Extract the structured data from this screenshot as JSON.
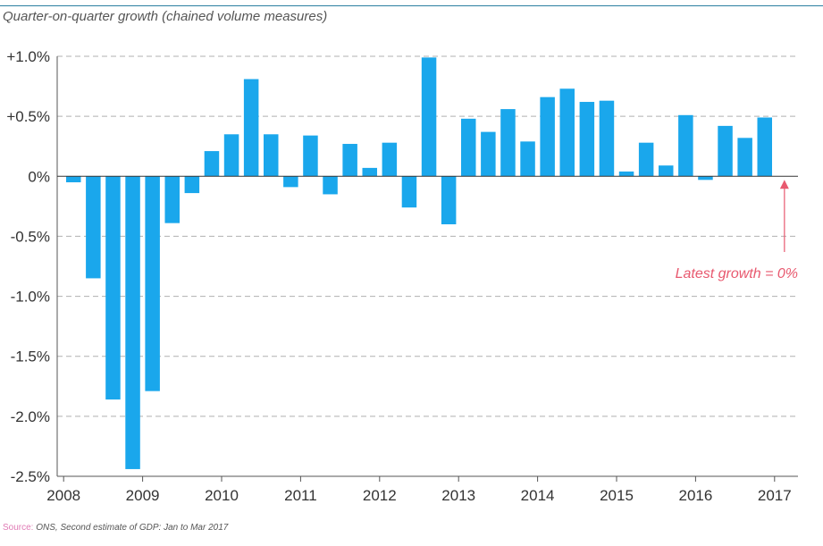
{
  "chart_data": {
    "type": "bar",
    "subtitle": "Quarter-on-quarter growth (chained volume measures)",
    "x_tick_labels": [
      "2008",
      "2009",
      "2010",
      "2011",
      "2012",
      "2013",
      "2014",
      "2015",
      "2016",
      "2017"
    ],
    "y_tick_labels": [
      "+1.0%",
      "+0.5%",
      "0%",
      "-0.5%",
      "-1.0%",
      "-1.5%",
      "-2.0%",
      "-2.5%"
    ],
    "y_ticks": [
      1.0,
      0.5,
      0,
      -0.5,
      -1.0,
      -1.5,
      -2.0,
      -2.5
    ],
    "ylim": [
      -2.5,
      1.0
    ],
    "ylabel": "",
    "xlabel": "",
    "grid": true,
    "grid_style": "dashed",
    "bar_color": "#1aa7ec",
    "series": [
      {
        "values": [
          -0.05,
          -0.85,
          -1.86,
          -2.44,
          -1.79,
          -0.39,
          -0.14,
          0.21,
          0.35,
          0.81,
          0.35,
          -0.09,
          0.34,
          -0.15,
          0.27,
          0.07,
          0.28,
          -0.26,
          0.99,
          -0.4,
          0.48,
          0.37,
          0.56,
          0.29,
          0.66,
          0.73,
          0.62,
          0.63,
          0.04,
          0.28,
          0.09,
          0.51,
          -0.03,
          0.42,
          0.32,
          0.49,
          0.0
        ]
      }
    ],
    "annotation": {
      "text": "Latest growth = 0%",
      "color": "#e8596f"
    }
  },
  "source": {
    "label": "Source:",
    "text": "ONS, Second estimate of GDP: Jan to Mar 2017"
  }
}
